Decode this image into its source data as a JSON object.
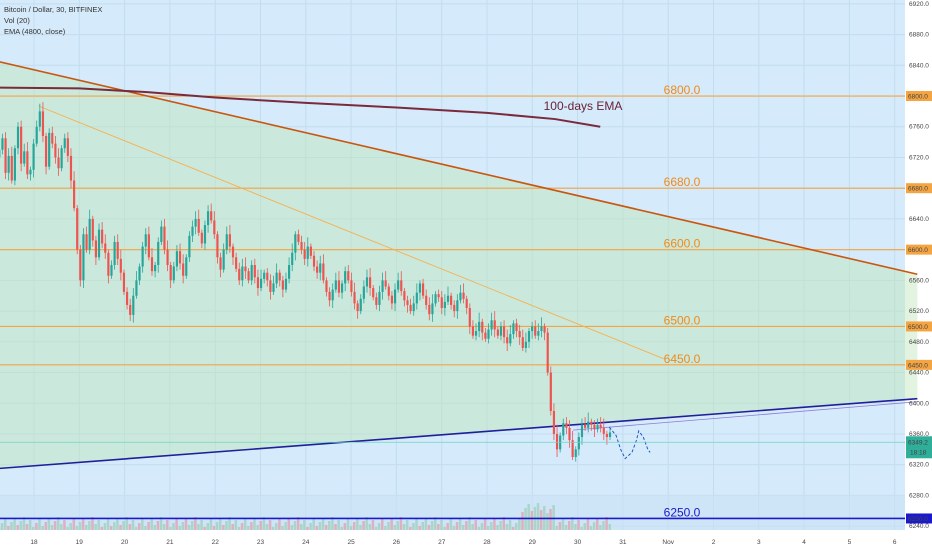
{
  "chart_data": {
    "type": "candlestick",
    "header": {
      "symbol_line": "Bitcoin / Dollar, 30, BITFINEX",
      "vol_line": "Vol (20)",
      "ema_line": "EMA (4800, close)"
    },
    "ylim": [
      6235,
      6925
    ],
    "y_ticks": [
      "6920.0",
      "6880.0",
      "6840.0",
      "6800.0",
      "6760.0",
      "6720.0",
      "6680.0",
      "6640.0",
      "6600.0",
      "6560.0",
      "6520.0",
      "6480.0",
      "6440.0",
      "6400.0",
      "6360.0",
      "6320.0",
      "6280.0",
      "6240.0"
    ],
    "x_ticks": [
      {
        "t": 0,
        "label": "18"
      },
      {
        "t": 1,
        "label": "19"
      },
      {
        "t": 2,
        "label": "20"
      },
      {
        "t": 3,
        "label": "21"
      },
      {
        "t": 4,
        "label": "22"
      },
      {
        "t": 5,
        "label": "23"
      },
      {
        "t": 6,
        "label": "24"
      },
      {
        "t": 7,
        "label": "25"
      },
      {
        "t": 8,
        "label": "26"
      },
      {
        "t": 9,
        "label": "27"
      },
      {
        "t": 10,
        "label": "28"
      },
      {
        "t": 11,
        "label": "29"
      },
      {
        "t": 12,
        "label": "30"
      },
      {
        "t": 13,
        "label": "31"
      },
      {
        "t": 14,
        "label": "Nov"
      },
      {
        "t": 15,
        "label": "2"
      },
      {
        "t": 16,
        "label": "3"
      },
      {
        "t": 17,
        "label": "4"
      },
      {
        "t": 18,
        "label": "5"
      },
      {
        "t": 19,
        "label": "6"
      }
    ],
    "levels": [
      {
        "value": 6800,
        "label": "6800.0",
        "tag": "6800.0",
        "color": "#f5a442"
      },
      {
        "value": 6680,
        "label": "6680.0",
        "tag": "6680.0",
        "color": "#f5a442"
      },
      {
        "value": 6600,
        "label": "6600.0",
        "tag": "6600.0",
        "color": "#f5a442"
      },
      {
        "value": 6500,
        "label": "6500.0",
        "tag": "6500.0",
        "color": "#f5a442"
      },
      {
        "value": 6450,
        "label": "6450.0",
        "tag": "6450.0",
        "color": "#f5a442"
      },
      {
        "value": 6250,
        "label": "6250.0",
        "tag": "6250.0",
        "color": "#1a1acc"
      }
    ],
    "price_tag": {
      "value": 6349.2,
      "label": "6349.2",
      "time": "18:18",
      "color": "#2fae9a"
    },
    "ema": {
      "label": "100-days EMA",
      "color": "#7a2a3a",
      "points": [
        [
          -0.8,
          6811
        ],
        [
          1,
          6810
        ],
        [
          2.5,
          6805
        ],
        [
          4,
          6798
        ],
        [
          6,
          6791
        ],
        [
          8,
          6785
        ],
        [
          10,
          6778
        ],
        [
          11.5,
          6770
        ],
        [
          12.5,
          6760
        ]
      ]
    },
    "trendlines": [
      {
        "points": [
          [
            -0.8,
            6845
          ],
          [
            19.5,
            6568
          ]
        ],
        "color": "#c9560f",
        "width": 1.6
      },
      {
        "points": [
          [
            0.1,
            6787
          ],
          [
            13.9,
            6458
          ]
        ],
        "color": "#f5b14f",
        "width": 0.9
      },
      {
        "points": [
          [
            -0.8,
            6315
          ],
          [
            19.5,
            6406
          ]
        ],
        "color": "#1f1f9a",
        "width": 1.6
      },
      {
        "points": [
          [
            11.9,
            6365
          ],
          [
            19.5,
            6402
          ]
        ],
        "color": "#8f7adb",
        "width": 0.8
      }
    ],
    "fill_regions": [
      {
        "points": [
          [
            -0.8,
            6845
          ],
          [
            19.5,
            6568
          ],
          [
            19.5,
            6406
          ],
          [
            -0.8,
            6315
          ]
        ],
        "color": "#bfe7b8",
        "opacity": 0.45
      }
    ],
    "projection": {
      "color": "#2255cc",
      "points": [
        [
          12.7,
          6369
        ],
        [
          12.85,
          6358
        ],
        [
          12.95,
          6340
        ],
        [
          13.05,
          6328
        ],
        [
          13.2,
          6336
        ],
        [
          13.3,
          6352
        ],
        [
          13.35,
          6364
        ],
        [
          13.45,
          6356
        ],
        [
          13.55,
          6340
        ],
        [
          13.6,
          6336
        ]
      ]
    },
    "candles_close": [
      6730,
      6745,
      6700,
      6722,
      6690,
      6732,
      6760,
      6712,
      6728,
      6698,
      6704,
      6738,
      6760,
      6780,
      6748,
      6708,
      6752,
      6738,
      6720,
      6706,
      6732,
      6745,
      6722,
      6690,
      6654,
      6600,
      6560,
      6620,
      6600,
      6640,
      6612,
      6590,
      6626,
      6608,
      6596,
      6566,
      6580,
      6610,
      6588,
      6570,
      6545,
      6528,
      6515,
      6540,
      6560,
      6578,
      6604,
      6620,
      6590,
      6572,
      6580,
      6610,
      6630,
      6600,
      6580,
      6560,
      6578,
      6598,
      6582,
      6566,
      6590,
      6618,
      6630,
      6640,
      6622,
      6608,
      6632,
      6650,
      6638,
      6620,
      6590,
      6574,
      6600,
      6620,
      6604,
      6590,
      6575,
      6560,
      6578,
      6572,
      6560,
      6580,
      6564,
      6550,
      6562,
      6570,
      6560,
      6545,
      6556,
      6570,
      6560,
      6548,
      6562,
      6580,
      6596,
      6620,
      6610,
      6600,
      6588,
      6604,
      6592,
      6578,
      6570,
      6582,
      6560,
      6545,
      6534,
      6548,
      6560,
      6544,
      6556,
      6572,
      6560,
      6545,
      6530,
      6520,
      6536,
      6552,
      6564,
      6550,
      6538,
      6528,
      6545,
      6560,
      6552,
      6540,
      6530,
      6548,
      6560,
      6546,
      6534,
      6528,
      6520,
      6530,
      6544,
      6556,
      6540,
      6528,
      6516,
      6530,
      6542,
      6538,
      6524,
      6532,
      6540,
      6528,
      6520,
      6534,
      6544,
      6536,
      6524,
      6500,
      6488,
      6494,
      6506,
      6492,
      6484,
      6496,
      6508,
      6496,
      6488,
      6500,
      6486,
      6478,
      6490,
      6504,
      6494,
      6486,
      6472,
      6480,
      6494,
      6500,
      6488,
      6494,
      6500,
      6492,
      6440,
      6390,
      6360,
      6340,
      6358,
      6374,
      6368,
      6352,
      6330,
      6340,
      6356,
      6372,
      6368,
      6376,
      6372,
      6366,
      6372,
      6368,
      6360,
      6356,
      6362
    ]
  }
}
